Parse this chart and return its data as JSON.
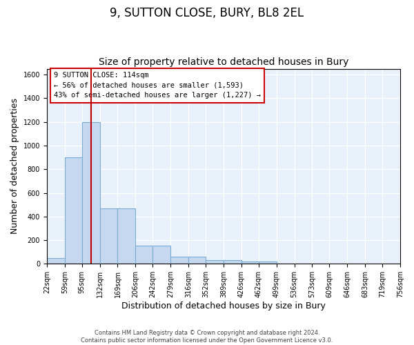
{
  "title": "9, SUTTON CLOSE, BURY, BL8 2EL",
  "subtitle": "Size of property relative to detached houses in Bury",
  "xlabel": "Distribution of detached houses by size in Bury",
  "ylabel": "Number of detached properties",
  "bin_edges": [
    22,
    59,
    95,
    132,
    169,
    206,
    242,
    279,
    316,
    352,
    389,
    426,
    462,
    499,
    536,
    573,
    609,
    646,
    683,
    719,
    756
  ],
  "bar_heights": [
    50,
    900,
    1200,
    470,
    470,
    155,
    155,
    60,
    60,
    30,
    30,
    20,
    20,
    0,
    0,
    0,
    0,
    0,
    0,
    0
  ],
  "bar_color": "#c5d8ef",
  "bar_edge_color": "#7aadd4",
  "background_color": "#e8f0fa",
  "grid_color": "#ffffff",
  "vline_x": 114,
  "vline_color": "#bb0000",
  "ylim": [
    0,
    1650
  ],
  "yticks": [
    0,
    200,
    400,
    600,
    800,
    1000,
    1200,
    1400,
    1600
  ],
  "annotation_text": "9 SUTTON CLOSE: 114sqm\n← 56% of detached houses are smaller (1,593)\n43% of semi-detached houses are larger (1,227) →",
  "annotation_box_color": "#ffffff",
  "annotation_box_edge": "#cc0000",
  "footer_text": "Contains HM Land Registry data © Crown copyright and database right 2024.\nContains public sector information licensed under the Open Government Licence v3.0.",
  "title_fontsize": 12,
  "subtitle_fontsize": 10,
  "tick_label_fontsize": 7,
  "ylabel_fontsize": 9,
  "xlabel_fontsize": 9,
  "annotation_fontsize": 7.5,
  "footer_fontsize": 6
}
